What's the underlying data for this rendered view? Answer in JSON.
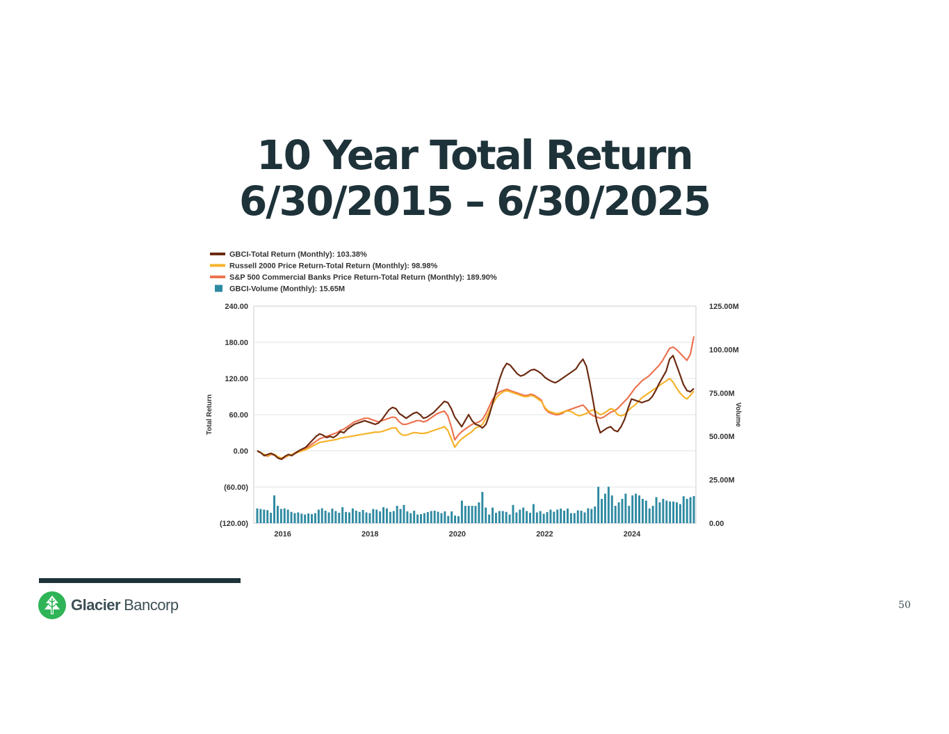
{
  "slide": {
    "title_line1": "10 Year Total Return",
    "title_line2": "6/30/2015 – 6/30/2025",
    "page_number": "50"
  },
  "footer": {
    "brand_bold": "Glacier",
    "brand_light": "Bancorp",
    "logo_icon": "tree-icon",
    "logo_color": "#2fb457"
  },
  "chart_data": {
    "type": "line",
    "legend": [
      {
        "label": "GBCI-Total Return (Monthly): 103.38%",
        "color": "#6b2a10",
        "kind": "line"
      },
      {
        "label": "Russell 2000 Price Return-Total Return (Monthly): 98.98%",
        "color": "#f5b32a",
        "kind": "line"
      },
      {
        "label": "S&P 500 Commercial Banks Price Return-Total Return (Monthly): 189.90%",
        "color": "#ec7350",
        "kind": "line"
      },
      {
        "label": "GBCI-Volume (Monthly): 15.65M",
        "color": "#2e8aa2",
        "kind": "bar"
      }
    ],
    "legend_position": "top-left",
    "ylabel": "Total Return",
    "y2label": "Volume",
    "ylim": [
      -120,
      240
    ],
    "y2lim": [
      0,
      125
    ],
    "y_ticks": [
      "240.00",
      "180.00",
      "120.00",
      "60.00",
      "0.00",
      "(60.00)",
      "(120.00)"
    ],
    "y2_ticks": [
      "125.00M",
      "100.00M",
      "75.00M",
      "50.00M",
      "25.00M",
      "0.00"
    ],
    "x_ticks": [
      "2016",
      "2018",
      "2020",
      "2022",
      "2024"
    ],
    "x_start": "2015-06",
    "x_end": "2025-06",
    "grid": true,
    "series": [
      {
        "name": "GBCI-Total Return (Monthly)",
        "color": "#6b2a10",
        "values": [
          0,
          -3,
          -8,
          -6,
          -4,
          -7,
          -12,
          -14,
          -9,
          -6,
          -8,
          -4,
          0,
          3,
          6,
          12,
          18,
          24,
          28,
          26,
          22,
          24,
          22,
          26,
          32,
          30,
          36,
          40,
          44,
          46,
          48,
          50,
          48,
          46,
          44,
          46,
          52,
          60,
          68,
          72,
          70,
          62,
          58,
          54,
          58,
          62,
          64,
          60,
          54,
          56,
          60,
          64,
          70,
          76,
          82,
          80,
          70,
          56,
          48,
          40,
          50,
          60,
          50,
          44,
          42,
          38,
          44,
          60,
          80,
          100,
          120,
          136,
          145,
          142,
          135,
          128,
          124,
          126,
          130,
          134,
          135,
          132,
          128,
          122,
          118,
          115,
          113,
          116,
          120,
          124,
          128,
          132,
          136,
          145,
          152,
          140,
          112,
          80,
          48,
          30,
          34,
          38,
          40,
          34,
          32,
          40,
          52,
          70,
          86,
          84,
          82,
          80,
          82,
          84,
          90,
          100,
          112,
          122,
          132,
          152,
          158,
          142,
          126,
          110,
          100,
          98,
          103.38
        ]
      },
      {
        "name": "Russell 2000 Price Return-Total Return (Monthly)",
        "color": "#f5b32a",
        "values": [
          0,
          -3,
          -6,
          -8,
          -5,
          -6,
          -10,
          -12,
          -10,
          -8,
          -6,
          -4,
          -2,
          0,
          2,
          5,
          8,
          11,
          14,
          15,
          16,
          17,
          18,
          19,
          21,
          22,
          23,
          24,
          25,
          26,
          27,
          28,
          29,
          30,
          31,
          31,
          32,
          34,
          36,
          38,
          38,
          30,
          26,
          26,
          28,
          30,
          30,
          29,
          29,
          30,
          32,
          34,
          36,
          38,
          40,
          34,
          20,
          6,
          14,
          20,
          24,
          28,
          32,
          38,
          40,
          44,
          54,
          66,
          78,
          88,
          94,
          98,
          100,
          98,
          96,
          94,
          92,
          90,
          90,
          92,
          90,
          86,
          82,
          72,
          66,
          64,
          62,
          62,
          64,
          66,
          66,
          64,
          60,
          58,
          60,
          62,
          66,
          68,
          64,
          60,
          62,
          66,
          70,
          68,
          60,
          58,
          60,
          66,
          72,
          76,
          82,
          88,
          92,
          96,
          100,
          104,
          108,
          112,
          116,
          120,
          114,
          104,
          96,
          90,
          86,
          92,
          98.98
        ]
      },
      {
        "name": "S&P 500 Commercial Banks Price Return-Total Return (Monthly)",
        "color": "#ec7350",
        "values": [
          0,
          -3,
          -7,
          -9,
          -6,
          -7,
          -12,
          -14,
          -11,
          -8,
          -6,
          -3,
          0,
          2,
          4,
          8,
          12,
          16,
          20,
          22,
          24,
          26,
          28,
          30,
          34,
          36,
          40,
          44,
          48,
          50,
          52,
          54,
          54,
          52,
          50,
          48,
          50,
          52,
          54,
          56,
          55,
          48,
          44,
          44,
          46,
          48,
          50,
          50,
          48,
          50,
          54,
          58,
          62,
          64,
          66,
          58,
          40,
          18,
          26,
          32,
          36,
          40,
          44,
          46,
          48,
          52,
          62,
          74,
          86,
          94,
          98,
          100,
          102,
          100,
          98,
          96,
          94,
          92,
          92,
          94,
          92,
          88,
          84,
          70,
          64,
          62,
          60,
          60,
          62,
          66,
          68,
          70,
          72,
          74,
          76,
          70,
          62,
          58,
          56,
          54,
          56,
          60,
          64,
          66,
          70,
          76,
          82,
          88,
          96,
          104,
          110,
          116,
          120,
          124,
          130,
          136,
          142,
          150,
          160,
          170,
          172,
          168,
          162,
          156,
          150,
          160,
          189.9
        ]
      },
      {
        "name": "GBCI-Volume (Monthly)",
        "color": "#2e8aa2",
        "axis": "y2",
        "values": [
          8.5,
          8.2,
          7.8,
          7.5,
          6,
          16,
          10,
          8.2,
          8.5,
          7.8,
          6.5,
          5.8,
          6.2,
          5.5,
          5,
          5.6,
          5.2,
          5.8,
          7.8,
          8.6,
          7.2,
          6.2,
          8.4,
          7,
          6,
          9.2,
          6.5,
          6.2,
          8.5,
          7.2,
          6.5,
          7.6,
          6.2,
          5.8,
          8.2,
          7.8,
          6.8,
          9.2,
          8.5,
          6.5,
          7,
          10,
          8.2,
          10.5,
          6.8,
          5.8,
          7.2,
          5,
          5.2,
          5.8,
          6.4,
          7,
          7.2,
          6.6,
          5.8,
          6.8,
          4.2,
          6.8,
          4.4,
          4,
          13,
          10,
          10,
          10,
          10,
          12,
          18,
          9,
          5,
          9,
          6,
          7,
          7,
          6.5,
          5,
          10.5,
          6.2,
          7.8,
          9,
          7,
          6,
          11,
          6.2,
          7,
          5.4,
          6.4,
          7.8,
          6.6,
          7.8,
          8.4,
          7.2,
          8.4,
          5.8,
          5.8,
          7.4,
          7.2,
          6.2,
          8.6,
          8.2,
          9.6,
          21,
          14,
          17,
          21,
          16,
          10,
          12,
          14,
          17,
          10,
          16,
          17,
          16,
          14,
          13,
          8.5,
          10,
          15,
          12,
          14,
          13,
          12.5,
          12.5,
          12,
          11,
          15.5,
          14,
          15,
          15.65
        ]
      }
    ]
  }
}
